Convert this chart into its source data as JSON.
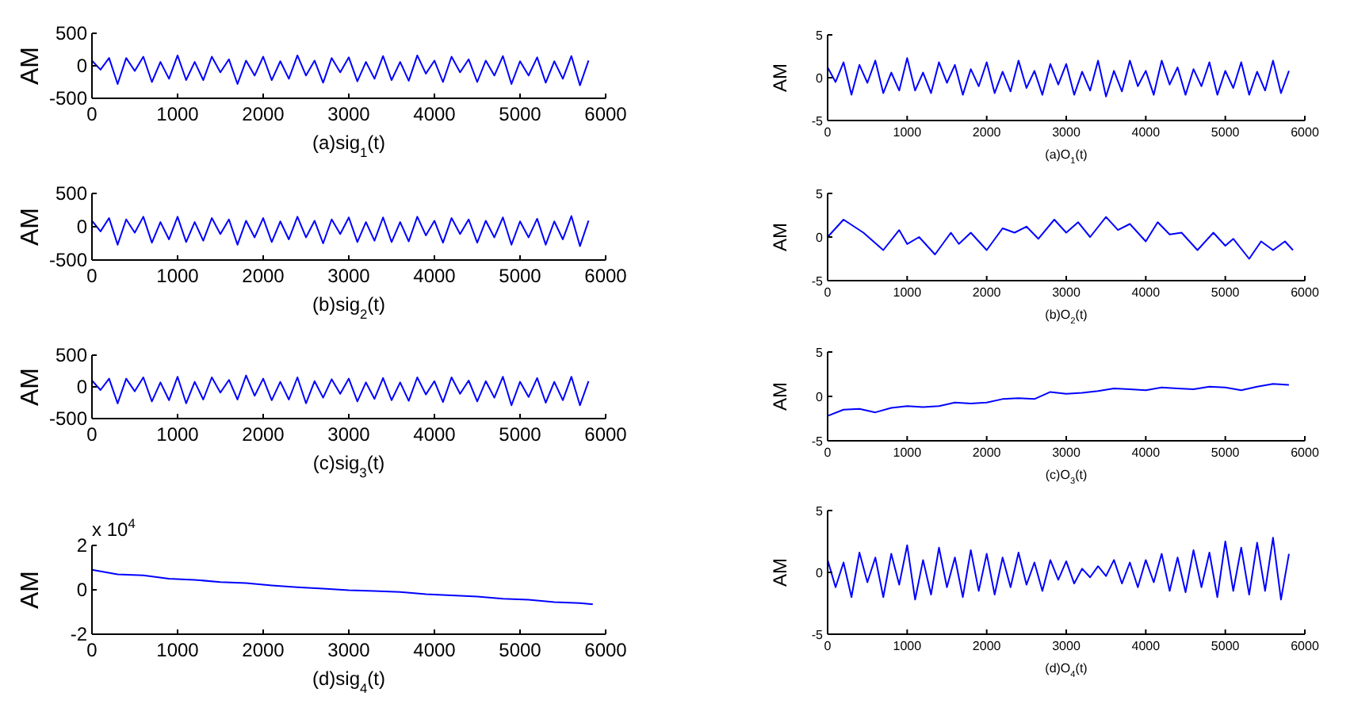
{
  "chart_data": [
    {
      "type": "line",
      "xlabel": "(a)sig$_{1}$(t)",
      "ylabel": "AM",
      "xlim": [
        0,
        6000
      ],
      "xticks": [
        0,
        1000,
        2000,
        3000,
        4000,
        5000,
        6000
      ],
      "ylim": [
        -500,
        500
      ],
      "yticks": [
        -500,
        0,
        500
      ],
      "x": [
        0,
        100,
        200,
        300,
        400,
        500,
        600,
        700,
        800,
        900,
        1000,
        1100,
        1200,
        1300,
        1400,
        1500,
        1600,
        1700,
        1800,
        1900,
        2000,
        2100,
        2200,
        2300,
        2400,
        2500,
        2600,
        2700,
        2800,
        2900,
        3000,
        3100,
        3200,
        3300,
        3400,
        3500,
        3600,
        3700,
        3800,
        3900,
        4000,
        4100,
        4200,
        4300,
        4400,
        4500,
        4600,
        4700,
        4800,
        4900,
        5000,
        5100,
        5200,
        5300,
        5400,
        5500,
        5600,
        5700,
        5800
      ],
      "series": [
        {
          "color": "#0000ff",
          "values": [
            80,
            -60,
            120,
            -280,
            120,
            -80,
            140,
            -250,
            60,
            -200,
            160,
            -220,
            60,
            -220,
            140,
            -100,
            100,
            -280,
            80,
            -150,
            140,
            -220,
            70,
            -200,
            160,
            -150,
            80,
            -260,
            120,
            -100,
            130,
            -240,
            60,
            -200,
            150,
            -220,
            60,
            -230,
            160,
            -120,
            80,
            -250,
            140,
            -100,
            100,
            -250,
            80,
            -150,
            150,
            -280,
            70,
            -150,
            130,
            -260,
            70,
            -200,
            150,
            -300,
            80
          ]
        }
      ]
    },
    {
      "type": "line",
      "xlabel": "(a)O$_{1}$(t)",
      "ylabel": "AM",
      "xlim": [
        0,
        6000
      ],
      "xticks": [
        0,
        1000,
        2000,
        3000,
        4000,
        5000,
        6000
      ],
      "ylim": [
        -5,
        5
      ],
      "yticks": [
        -5,
        0,
        5
      ],
      "x": [
        0,
        100,
        200,
        300,
        400,
        500,
        600,
        700,
        800,
        900,
        1000,
        1100,
        1200,
        1300,
        1400,
        1500,
        1600,
        1700,
        1800,
        1900,
        2000,
        2100,
        2200,
        2300,
        2400,
        2500,
        2600,
        2700,
        2800,
        2900,
        3000,
        3100,
        3200,
        3300,
        3400,
        3500,
        3600,
        3700,
        3800,
        3900,
        4000,
        4100,
        4200,
        4300,
        4400,
        4500,
        4600,
        4700,
        4800,
        4900,
        5000,
        5100,
        5200,
        5300,
        5400,
        5500,
        5600,
        5700,
        5800
      ],
      "series": [
        {
          "color": "#0000ff",
          "values": [
            1.2,
            -0.5,
            1.8,
            -2,
            1.5,
            -0.6,
            2,
            -1.8,
            0.6,
            -1.5,
            2.3,
            -1.5,
            0.6,
            -1.8,
            1.8,
            -0.6,
            1.5,
            -2,
            1,
            -1,
            1.8,
            -1.8,
            0.7,
            -1.6,
            2,
            -1.2,
            0.8,
            -2,
            1.6,
            -0.8,
            1.6,
            -2,
            0.7,
            -1.5,
            2,
            -2.2,
            0.8,
            -1.6,
            2,
            -1,
            0.8,
            -2,
            2,
            -0.8,
            1.2,
            -2,
            1,
            -1,
            1.8,
            -2,
            0.8,
            -1.2,
            1.8,
            -2,
            0.7,
            -1.5,
            2,
            -1.8,
            0.8
          ]
        }
      ]
    },
    {
      "type": "line",
      "xlabel": "(b)sig$_{2}$(t)",
      "ylabel": "AM",
      "xlim": [
        0,
        6000
      ],
      "xticks": [
        0,
        1000,
        2000,
        3000,
        4000,
        5000,
        6000
      ],
      "ylim": [
        -500,
        500
      ],
      "yticks": [
        -500,
        0,
        500
      ],
      "x": [
        0,
        100,
        200,
        300,
        400,
        500,
        600,
        700,
        800,
        900,
        1000,
        1100,
        1200,
        1300,
        1400,
        1500,
        1600,
        1700,
        1800,
        1900,
        2000,
        2100,
        2200,
        2300,
        2400,
        2500,
        2600,
        2700,
        2800,
        2900,
        3000,
        3100,
        3200,
        3300,
        3400,
        3500,
        3600,
        3700,
        3800,
        3900,
        4000,
        4100,
        4200,
        4300,
        4400,
        4500,
        4600,
        4700,
        4800,
        4900,
        5000,
        5100,
        5200,
        5300,
        5400,
        5500,
        5600,
        5700,
        5800
      ],
      "series": [
        {
          "color": "#0000ff",
          "values": [
            90,
            -70,
            130,
            -270,
            110,
            -90,
            150,
            -240,
            70,
            -190,
            150,
            -230,
            70,
            -210,
            130,
            -110,
            110,
            -270,
            90,
            -160,
            130,
            -230,
            80,
            -190,
            150,
            -160,
            90,
            -250,
            110,
            -110,
            140,
            -230,
            70,
            -210,
            140,
            -230,
            70,
            -220,
            150,
            -130,
            90,
            -240,
            130,
            -110,
            110,
            -240,
            90,
            -160,
            140,
            -270,
            80,
            -160,
            120,
            -270,
            80,
            -190,
            160,
            -290,
            90
          ]
        }
      ]
    },
    {
      "type": "line",
      "xlabel": "(b)O$_{2}$(t)",
      "ylabel": "AM",
      "xlim": [
        0,
        6000
      ],
      "xticks": [
        0,
        1000,
        2000,
        3000,
        4000,
        5000,
        6000
      ],
      "ylim": [
        -5,
        5
      ],
      "yticks": [
        -5,
        0,
        5
      ],
      "x": [
        0,
        200,
        450,
        700,
        900,
        1000,
        1150,
        1350,
        1550,
        1650,
        1800,
        2000,
        2200,
        2350,
        2500,
        2650,
        2850,
        3000,
        3150,
        3300,
        3500,
        3650,
        3800,
        4000,
        4150,
        4300,
        4450,
        4650,
        4850,
        5000,
        5100,
        5300,
        5450,
        5600,
        5750,
        5850
      ],
      "series": [
        {
          "color": "#0000ff",
          "values": [
            0,
            2,
            0.5,
            -1.5,
            0.8,
            -0.8,
            0,
            -2,
            0.5,
            -0.8,
            0.5,
            -1.5,
            1,
            0.5,
            1.2,
            -0.2,
            2,
            0.5,
            1.7,
            0,
            2.3,
            0.8,
            1.5,
            -0.5,
            1.7,
            0.3,
            0.5,
            -1.5,
            0.5,
            -1,
            -0.2,
            -2.5,
            -0.5,
            -1.5,
            -0.5,
            -1.5
          ]
        }
      ]
    },
    {
      "type": "line",
      "xlabel": "(c)sig$_{3}$(t)",
      "ylabel": "AM",
      "xlim": [
        0,
        6000
      ],
      "xticks": [
        0,
        1000,
        2000,
        3000,
        4000,
        5000,
        6000
      ],
      "ylim": [
        -500,
        500
      ],
      "yticks": [
        -500,
        0,
        500
      ],
      "x": [
        0,
        100,
        200,
        300,
        400,
        500,
        600,
        700,
        800,
        900,
        1000,
        1100,
        1200,
        1300,
        1400,
        1500,
        1600,
        1700,
        1800,
        1900,
        2000,
        2100,
        2200,
        2300,
        2400,
        2500,
        2600,
        2700,
        2800,
        2900,
        3000,
        3100,
        3200,
        3300,
        3400,
        3500,
        3600,
        3700,
        3800,
        3900,
        4000,
        4100,
        4200,
        4300,
        4400,
        4500,
        4600,
        4700,
        4800,
        4900,
        5000,
        5100,
        5200,
        5300,
        5400,
        5500,
        5600,
        5700,
        5800
      ],
      "series": [
        {
          "color": "#0000ff",
          "values": [
            100,
            -50,
            130,
            -260,
            130,
            -70,
            150,
            -230,
            70,
            -210,
            160,
            -260,
            80,
            -200,
            150,
            -90,
            110,
            -200,
            180,
            -140,
            130,
            -210,
            80,
            -200,
            150,
            -260,
            90,
            -170,
            120,
            -110,
            130,
            -230,
            70,
            -190,
            140,
            -210,
            70,
            -220,
            150,
            -120,
            90,
            -240,
            150,
            -110,
            100,
            -230,
            90,
            -170,
            160,
            -290,
            80,
            -160,
            140,
            -250,
            80,
            -210,
            160,
            -290,
            90
          ]
        }
      ]
    },
    {
      "type": "line",
      "xlabel": "(c)O$_{3}$(t)",
      "ylabel": "AM",
      "xlim": [
        0,
        6000
      ],
      "xticks": [
        0,
        1000,
        2000,
        3000,
        4000,
        5000,
        6000
      ],
      "ylim": [
        -5,
        5
      ],
      "yticks": [
        -5,
        0,
        5
      ],
      "x": [
        0,
        200,
        400,
        600,
        800,
        1000,
        1200,
        1400,
        1600,
        1800,
        2000,
        2200,
        2400,
        2600,
        2800,
        3000,
        3200,
        3400,
        3600,
        3800,
        4000,
        4200,
        4400,
        4600,
        4800,
        5000,
        5200,
        5400,
        5600,
        5800
      ],
      "series": [
        {
          "color": "#0000ff",
          "values": [
            -2.2,
            -1.5,
            -1.4,
            -1.8,
            -1.3,
            -1.1,
            -1.2,
            -1.1,
            -0.7,
            -0.8,
            -0.7,
            -0.3,
            -0.2,
            -0.3,
            0.5,
            0.3,
            0.4,
            0.6,
            0.9,
            0.8,
            0.7,
            1,
            0.9,
            0.8,
            1.1,
            1,
            0.7,
            1.1,
            1.4,
            1.3
          ]
        }
      ]
    },
    {
      "type": "line",
      "xlabel": "(d)sig$_{4}$(t)",
      "ylabel": "AM",
      "annotations": [
        "x 10$^{4}$"
      ],
      "xlim": [
        0,
        6000
      ],
      "xticks": [
        0,
        1000,
        2000,
        3000,
        4000,
        5000,
        6000
      ],
      "ylim": [
        -2,
        2
      ],
      "yticks": [
        -2,
        0,
        2
      ],
      "x": [
        0,
        300,
        600,
        900,
        1200,
        1500,
        1800,
        2100,
        2400,
        2700,
        3000,
        3300,
        3600,
        3900,
        4200,
        4500,
        4800,
        5100,
        5400,
        5700,
        5850
      ],
      "series": [
        {
          "color": "#0000ff",
          "values": [
            0.9,
            0.7,
            0.65,
            0.5,
            0.45,
            0.35,
            0.3,
            0.2,
            0.12,
            0.05,
            -0.02,
            -0.05,
            -0.1,
            -0.2,
            -0.25,
            -0.3,
            -0.4,
            -0.45,
            -0.55,
            -0.6,
            -0.65
          ]
        }
      ]
    },
    {
      "type": "line",
      "xlabel": "(d)O$_{4}$(t)",
      "ylabel": "AM",
      "xlim": [
        0,
        6000
      ],
      "xticks": [
        0,
        1000,
        2000,
        3000,
        4000,
        5000,
        6000
      ],
      "ylim": [
        -5,
        5
      ],
      "yticks": [
        -5,
        0,
        5
      ],
      "x": [
        0,
        100,
        200,
        300,
        400,
        500,
        600,
        700,
        800,
        900,
        1000,
        1100,
        1200,
        1300,
        1400,
        1500,
        1600,
        1700,
        1800,
        1900,
        2000,
        2100,
        2200,
        2300,
        2400,
        2500,
        2600,
        2700,
        2800,
        2900,
        3000,
        3100,
        3200,
        3300,
        3400,
        3500,
        3600,
        3700,
        3800,
        3900,
        4000,
        4100,
        4200,
        4300,
        4400,
        4500,
        4600,
        4700,
        4800,
        4900,
        5000,
        5100,
        5200,
        5300,
        5400,
        5500,
        5600,
        5700,
        5800
      ],
      "series": [
        {
          "color": "#0000ff",
          "values": [
            1,
            -1.2,
            0.8,
            -2,
            1.6,
            -0.8,
            1.2,
            -2,
            1.5,
            -1,
            2.2,
            -2.2,
            1,
            -1.8,
            2,
            -1.2,
            1.2,
            -2,
            1.8,
            -1.5,
            1.5,
            -1.8,
            1.2,
            -1.2,
            1.6,
            -1,
            0.8,
            -1.5,
            1,
            -0.6,
            0.9,
            -0.9,
            0.3,
            -0.4,
            0.5,
            -0.3,
            1,
            -0.9,
            0.8,
            -1.2,
            1,
            -0.8,
            1.5,
            -1.5,
            1.2,
            -1.6,
            1.8,
            -1.2,
            1.6,
            -2,
            2.5,
            -1.5,
            2,
            -1.8,
            2.4,
            -1.5,
            2.8,
            -2.2,
            1.5
          ]
        }
      ]
    }
  ]
}
